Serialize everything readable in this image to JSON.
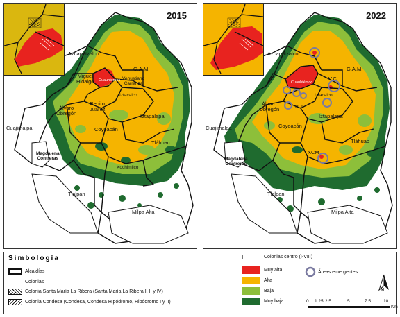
{
  "panels": [
    {
      "id": "2015",
      "year": "2015",
      "labels": {
        "cuajimalpa": "Cuajimalpa",
        "azcapotzalco": "Azcapotzalco",
        "gam": "G.A.M.",
        "miguel_hidalgo": "Miguel\nHidalgo",
        "cuauhtemoc": "Cuauhtémoc",
        "venustiano_carranza": "Venustiano\nCarranza",
        "iztacalco": "Iztacalco",
        "benito_juarez": "Benito\nJuárez",
        "alvaro_obregon": "Álvaro\nObregón",
        "iztapalapa": "Iztapalapa",
        "coyoacan": "Coyoacán",
        "tlahuac": "Tláhuac",
        "magdalena_contreras": "Magdalena\nContreras",
        "xochimilco": "Xochimilco",
        "tlalpan": "Tlalpan",
        "milpa_alta": "Milpa Alta"
      }
    },
    {
      "id": "2022",
      "year": "2022",
      "labels": {
        "cuajimalpa": "Cuajimalpa",
        "azcapotzalco": "Azcapotzalco",
        "gam": "G.A.M.",
        "vc": "V.C.",
        "cuauhtemoc": "Cuauhtémoc",
        "iztacalco": "Iztacalco",
        "bj": "B.J.",
        "alvaro_obregon": "Álvaro\nObregón",
        "iztapalapa": "Iztapalapa",
        "coyoacan": "Coyoacán",
        "xcm": "XCM",
        "tlahuac": "Tláhuac",
        "magdalena_contreras": "Magdalena\nContreras",
        "tlalpan": "Tlalpan",
        "milpa_alta": "Milpa Alta"
      }
    }
  ],
  "legend": {
    "title": "Simbología",
    "alcaldias": "Alcaldías",
    "colonias": "Colonias",
    "santa_maria": "Colonia Santa María La Ribera (Santa María La Ribera I, II y IV)",
    "condesa": "Colonia Condesa (Condesa, Condesa Hipódromo, Hipódromo I y II)",
    "colonias_centro": "Colonias centro (I-VIII)",
    "categories": [
      {
        "label": "Muy alta",
        "color": "#e8231f"
      },
      {
        "label": "Alta",
        "color": "#f5b400"
      },
      {
        "label": "Baja",
        "color": "#8dbf3a"
      },
      {
        "label": "Muy baja",
        "color": "#1f6b2f"
      }
    ],
    "areas_emergentes": "Áreas emergentes",
    "north": "N",
    "scale_ticks": [
      "0",
      "1.25",
      "2.5",
      "5",
      "7.5",
      "10"
    ],
    "scale_unit": "Km"
  }
}
